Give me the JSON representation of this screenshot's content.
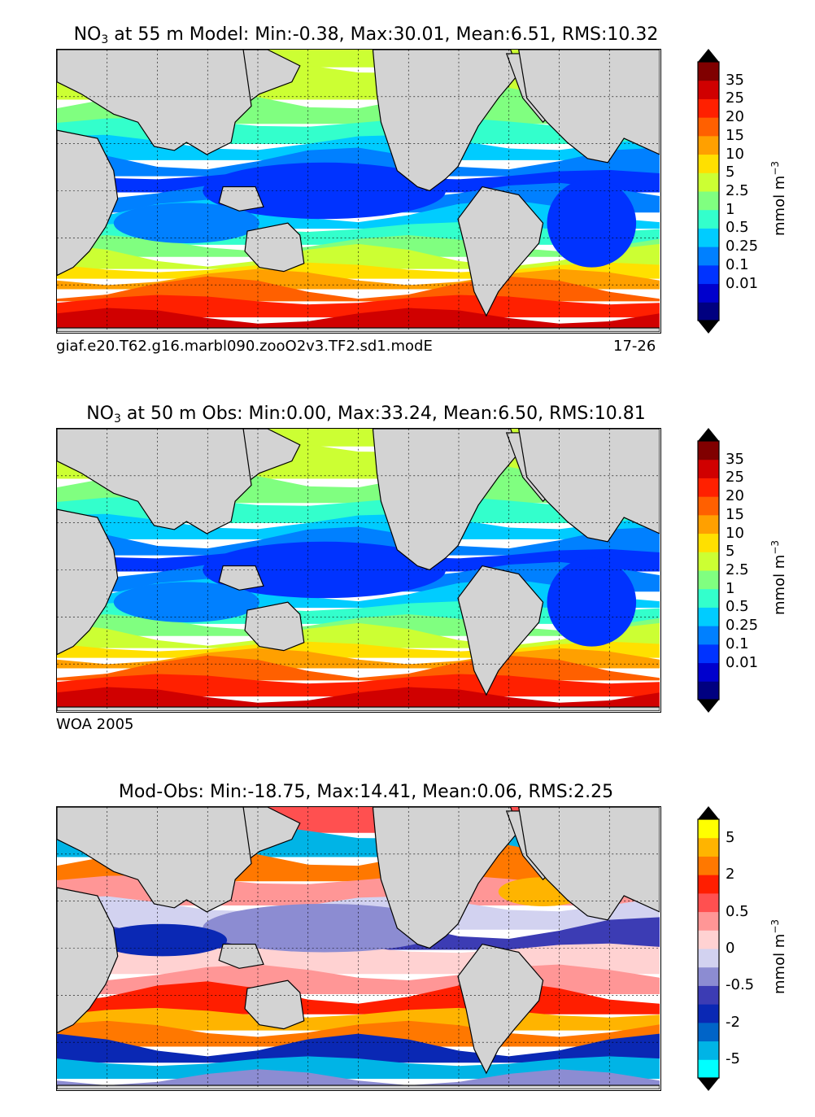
{
  "panels": [
    {
      "title_var": "NO",
      "title_sub": "3",
      "title_rest": " at 55 m Model: Min:-0.38, Max:30.01, Mean:6.51, RMS:10.32",
      "caption_left": "giaf.e20.T62.g16.marbl090.zooO2v3.TF2.sd1.modE",
      "caption_right": "17-26",
      "colorbar": {
        "type": "nutrient",
        "labels": [
          "35",
          "25",
          "20",
          "15",
          "10",
          "5",
          "2.5",
          "1",
          "0.5",
          "0.25",
          "0.1",
          "0.01"
        ],
        "unit": "mmol m",
        "unit_sup": "−3"
      }
    },
    {
      "title_var": "NO",
      "title_sub": "3",
      "title_rest": " at 50 m Obs: Min:0.00, Max:33.24, Mean:6.50, RMS:10.81",
      "caption_left": "WOA 2005",
      "caption_right": "",
      "colorbar": {
        "type": "nutrient",
        "labels": [
          "35",
          "25",
          "20",
          "15",
          "10",
          "5",
          "2.5",
          "1",
          "0.5",
          "0.25",
          "0.1",
          "0.01"
        ],
        "unit": "mmol m",
        "unit_sup": "−3"
      }
    },
    {
      "title_var": "",
      "title_sub": "",
      "title_rest": "Mod-Obs: Min:-18.75, Max:14.41, Mean:0.06, RMS:2.25",
      "caption_left": "",
      "caption_right": "",
      "colorbar": {
        "type": "difference",
        "labels": [
          "5",
          "2",
          "0.5",
          "0",
          "-0.5",
          "-2",
          "-5"
        ],
        "unit": "mmol m",
        "unit_sup": "−3"
      }
    }
  ],
  "colors": {
    "land": "#d3d3d3",
    "nutrient_scale": [
      "#000080",
      "#0000cd",
      "#0033ff",
      "#0080ff",
      "#00ccff",
      "#33ffcc",
      "#80ff80",
      "#ccff33",
      "#ffe000",
      "#ffa000",
      "#ff6000",
      "#ff2000",
      "#d00000",
      "#800000"
    ],
    "diff_scale": [
      "#00ffff",
      "#00b4e6",
      "#0064c8",
      "#0a28b4",
      "#3c3cb4",
      "#8c8cd2",
      "#d2d2f0",
      "#ffd2d2",
      "#ff9696",
      "#ff5050",
      "#ff1e00",
      "#ff7800",
      "#ffb400",
      "#ffff00"
    ]
  }
}
